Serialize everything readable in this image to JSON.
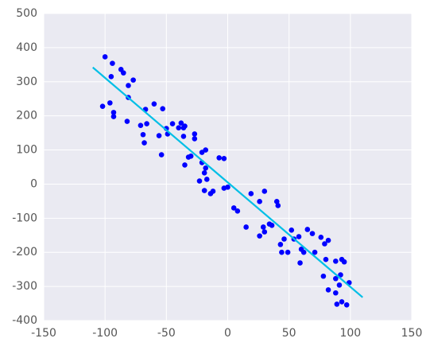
{
  "chart_data": {
    "type": "scatter",
    "points": {
      "color": "#0000ff",
      "x": [
        -100,
        -94,
        -87,
        -85,
        -81,
        -77,
        -95,
        -81,
        -102,
        -96,
        -93,
        -93,
        -82,
        -67,
        -60,
        -53,
        -71,
        -66,
        -69,
        -68,
        -56,
        -54,
        -50,
        -49,
        -45,
        -40,
        -38,
        -36,
        -35,
        -36,
        -32,
        -30,
        -35,
        -27,
        -27,
        -21,
        -18,
        -21,
        -18,
        -19,
        -17,
        -23,
        -19,
        -14,
        -12,
        -7,
        -3,
        -3,
        0,
        5,
        8,
        15,
        19,
        26,
        30,
        26,
        30,
        29,
        34,
        36,
        40,
        41,
        43,
        46,
        44,
        49,
        52,
        54,
        58,
        59,
        60,
        62,
        65,
        69,
        71,
        76,
        79,
        82,
        80,
        78,
        82,
        88,
        88,
        88,
        91,
        92,
        89,
        93,
        93,
        95,
        97,
        99
      ],
      "y": [
        373,
        354,
        336,
        326,
        289,
        305,
        315,
        254,
        228,
        238,
        210,
        198,
        184,
        219,
        235,
        221,
        172,
        177,
        145,
        121,
        142,
        86,
        163,
        147,
        177,
        165,
        179,
        165,
        170,
        140,
        79,
        82,
        56,
        147,
        133,
        93,
        100,
        63,
        47,
        33,
        14,
        9,
        -19,
        -28,
        -21,
        77,
        75,
        -12,
        -9,
        -70,
        -79,
        -126,
        -28,
        -51,
        -21,
        -152,
        -140,
        -126,
        -117,
        -121,
        -51,
        -63,
        -177,
        -161,
        -200,
        -200,
        -135,
        -161,
        -154,
        -231,
        -191,
        -200,
        -133,
        -145,
        -200,
        -156,
        -175,
        -165,
        -221,
        -270,
        -310,
        -226,
        -277,
        -319,
        -296,
        -266,
        -352,
        -345,
        -221,
        -228,
        -354,
        -289
      ]
    },
    "line": {
      "color": "#00bfe6",
      "x": [
        -110,
        110
      ],
      "y": [
        342,
        -332
      ]
    },
    "xlim": [
      -150,
      150
    ],
    "xticks": [
      -150,
      -100,
      -50,
      0,
      50,
      100,
      150
    ],
    "ylim": [
      -400,
      500
    ],
    "yticks": [
      -400,
      -300,
      -200,
      -100,
      0,
      100,
      200,
      300,
      400,
      500
    ],
    "grid": true
  }
}
